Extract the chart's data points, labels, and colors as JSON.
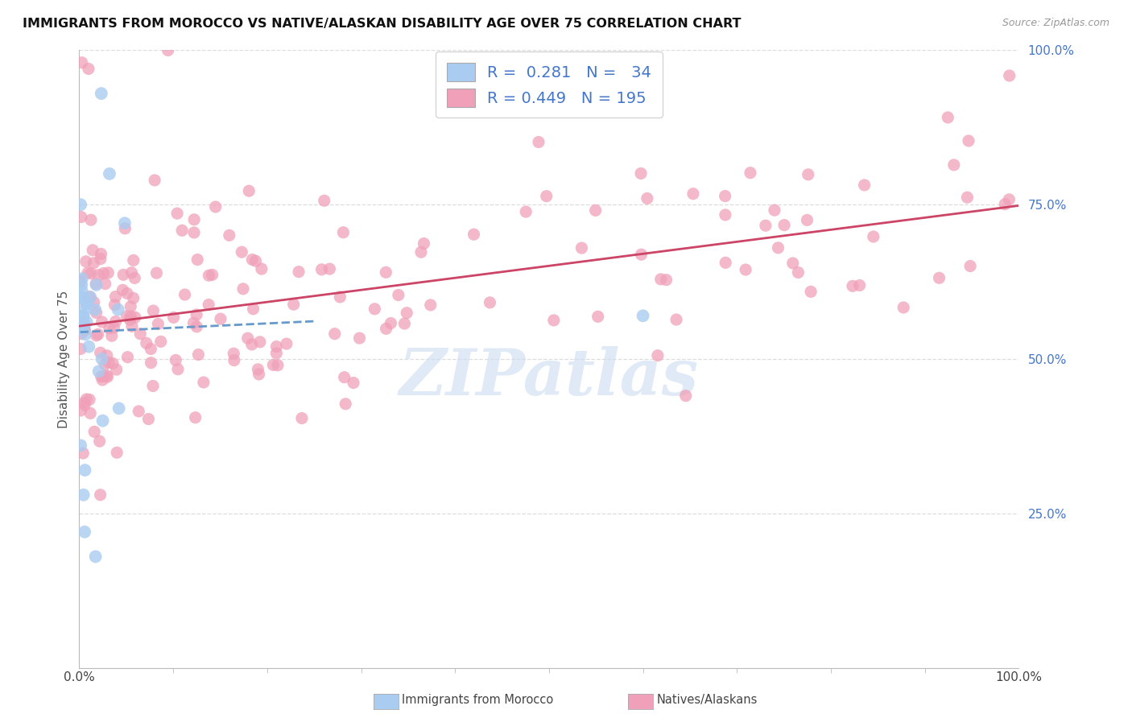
{
  "title": "IMMIGRANTS FROM MOROCCO VS NATIVE/ALASKAN DISABILITY AGE OVER 75 CORRELATION CHART",
  "source": "Source: ZipAtlas.com",
  "ylabel": "Disability Age Over 75",
  "legend_label_1": "Immigrants from Morocco",
  "legend_label_2": "Natives/Alaskans",
  "R1": "0.281",
  "N1": "34",
  "R2": "0.449",
  "N2": "195",
  "color_blue": "#aaccf0",
  "color_pink": "#f0a0b8",
  "color_blue_text": "#4477cc",
  "line_blue": "#6699cc",
  "line_pink": "#cc4466",
  "background": "#ffffff",
  "grid_color": "#dddddd",
  "watermark_color": "#ccddf0",
  "xlim": [
    0,
    1.0
  ],
  "ylim": [
    0,
    1.0
  ],
  "yticks": [
    0.25,
    0.5,
    0.75,
    1.0
  ],
  "ytick_labels": [
    "25.0%",
    "50.0%",
    "75.0%",
    "100.0%"
  ],
  "xticks": [
    0.0,
    1.0
  ],
  "xtick_labels": [
    "0.0%",
    "100.0%"
  ]
}
